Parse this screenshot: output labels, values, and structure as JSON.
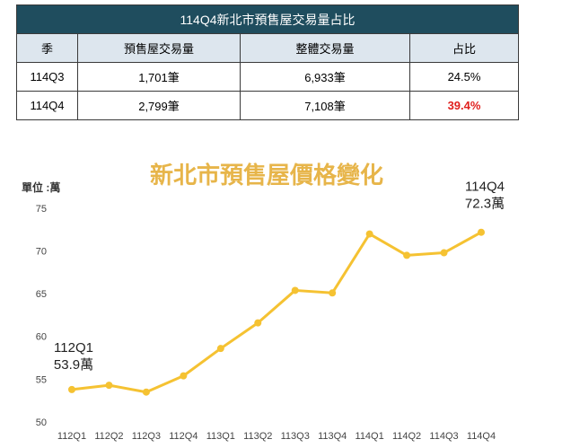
{
  "table": {
    "title": "114Q4新北市預售屋交易量占比",
    "header": [
      "季",
      "預售屋交易量",
      "整體交易量",
      "占比"
    ],
    "rows": [
      [
        "114Q3",
        "1,701筆",
        "6,933筆",
        "24.5%"
      ],
      [
        "114Q4",
        "2,799筆",
        "7,108筆",
        "39.4%"
      ]
    ]
  },
  "chart_data": {
    "type": "line",
    "title": "新北市預售屋價格變化",
    "y_label": "單位 :萬",
    "categories": [
      "112Q1",
      "112Q2",
      "112Q3",
      "112Q4",
      "113Q1",
      "113Q2",
      "113Q3",
      "113Q4",
      "114Q1",
      "114Q2",
      "114Q3",
      "114Q4"
    ],
    "series": [
      {
        "name": "價格",
        "color": "#f5c232",
        "values": [
          53.9,
          54.4,
          53.6,
          55.5,
          58.7,
          61.7,
          65.5,
          65.2,
          72.1,
          69.6,
          69.9,
          72.3
        ]
      }
    ],
    "annotations": [
      {
        "index": 0,
        "lines": [
          "112Q1",
          "53.9萬"
        ]
      },
      {
        "index": 11,
        "lines": [
          "114Q4",
          "72.3萬"
        ]
      }
    ],
    "ylim": [
      50,
      75
    ],
    "yticks": [
      50,
      55,
      60,
      65,
      70,
      75
    ],
    "grid": false
  }
}
